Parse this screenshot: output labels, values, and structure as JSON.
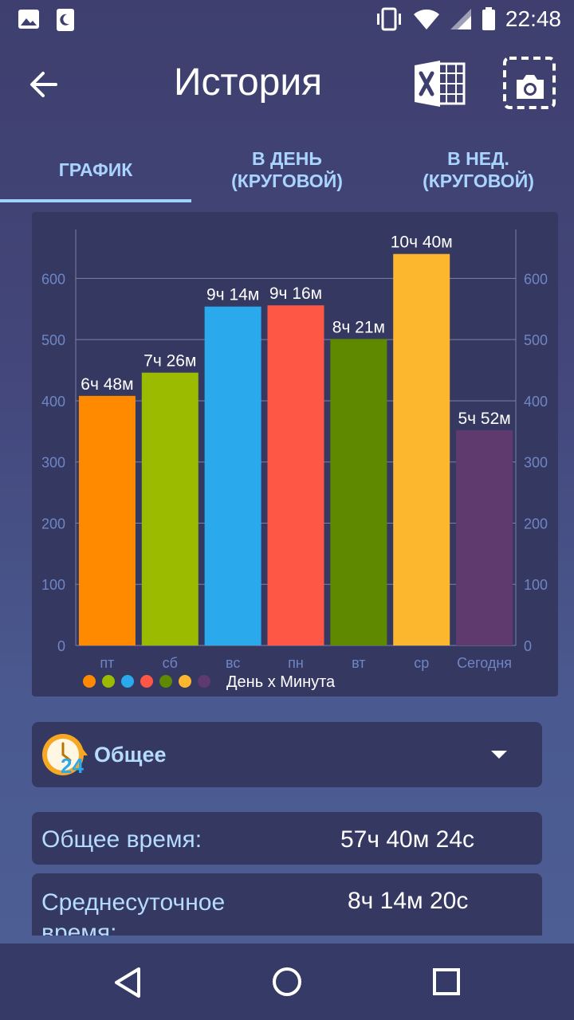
{
  "status_bar": {
    "time": "22:48"
  },
  "header": {
    "title": "История"
  },
  "tabs": [
    {
      "line1": "ГРАФИК",
      "line2": ""
    },
    {
      "line1": "В ДЕНЬ",
      "line2": "(КРУГОВОЙ)"
    },
    {
      "line1": "В НЕД.",
      "line2": "(КРУГОВОЙ)"
    }
  ],
  "chart_data": {
    "type": "bar",
    "categories": [
      "пт",
      "сб",
      "вс",
      "пн",
      "вт",
      "ср",
      "Сегодня"
    ],
    "values": [
      408,
      446,
      554,
      556,
      501,
      640,
      352
    ],
    "data_labels": [
      "6ч 48м",
      "7ч 26м",
      "9ч 14м",
      "9ч 16м",
      "8ч 21м",
      "10ч 40м",
      "5ч 52м"
    ],
    "colors": [
      "#ff8a00",
      "#9bbb00",
      "#2aa9ec",
      "#ff5745",
      "#5f8a00",
      "#fdb72e",
      "#5e3a6e"
    ],
    "legend_label": "День x Минута",
    "yticks": [
      0,
      100,
      200,
      300,
      400,
      500,
      600
    ],
    "ylim": [
      0,
      680
    ]
  },
  "summary": {
    "dropdown_label": "Общее",
    "badge": "24"
  },
  "stats": [
    {
      "label": "Общее время:",
      "value": "57ч 40м 24с"
    },
    {
      "label": "Среднесуточное время:",
      "value": "8ч 14м 20с"
    }
  ]
}
